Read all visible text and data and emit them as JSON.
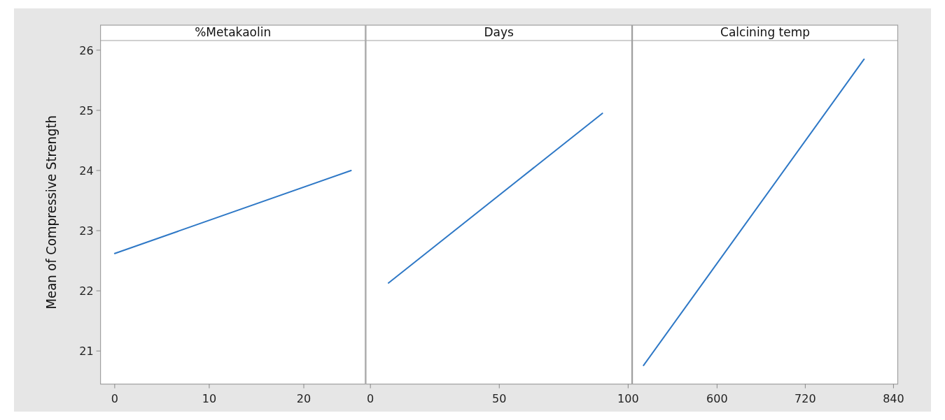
{
  "chart_data": [
    {
      "type": "line",
      "title": "%Metakaolin",
      "ylabel": "Mean of Compressive Strength",
      "x": [
        0,
        25
      ],
      "series": [
        {
          "color": "#2e78c6",
          "values": [
            22.62,
            24.0
          ]
        }
      ],
      "xlim": [
        -1.5,
        26.5
      ],
      "xticks": [
        0,
        10,
        20
      ],
      "ylim": [
        20.45,
        26.16
      ],
      "yticks": [
        21,
        22,
        23,
        24,
        25,
        26
      ]
    },
    {
      "type": "line",
      "title": "Days",
      "x": [
        7,
        90
      ],
      "series": [
        {
          "color": "#2e78c6",
          "values": [
            22.13,
            24.95
          ]
        }
      ],
      "xlim": [
        -1.7,
        101.4
      ],
      "xticks": [
        0,
        50,
        100
      ],
      "ylim": [
        20.45,
        26.16
      ],
      "yticks": [
        21,
        22,
        23,
        24,
        25,
        26
      ],
      "tick_labels": "x"
    },
    {
      "type": "line",
      "title": "Calcining temp",
      "x": [
        500,
        800
      ],
      "series": [
        {
          "color": "#2e78c6",
          "values": [
            20.76,
            25.85
          ]
        }
      ],
      "xlim": [
        485,
        845.8
      ],
      "xticks": [
        600,
        720,
        840
      ],
      "ylim": [
        20.45,
        26.16
      ],
      "yticks": [
        21,
        22,
        23,
        24,
        25,
        26
      ],
      "tick_labels": "x"
    }
  ]
}
